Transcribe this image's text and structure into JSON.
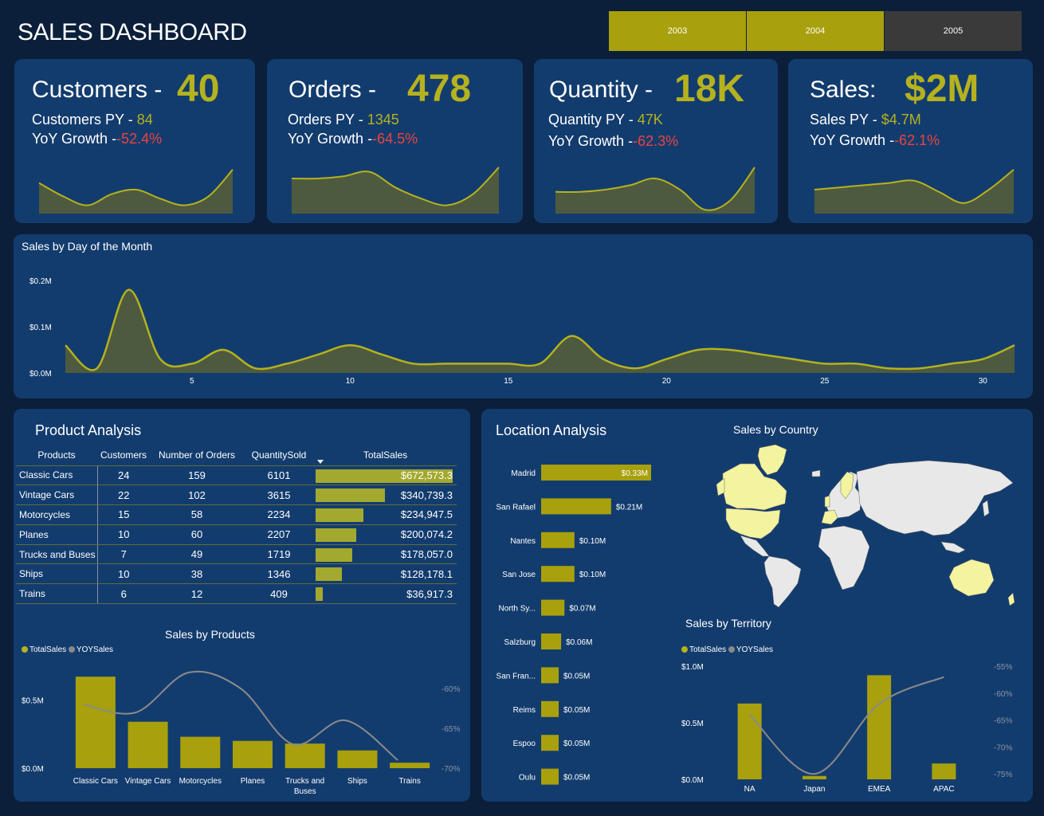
{
  "header": {
    "title": "SALES DASHBOARD"
  },
  "year_filter": {
    "options": [
      "2003",
      "2004",
      "2005"
    ],
    "selected": [
      "2003",
      "2004"
    ],
    "selected_color": "#a8a00c",
    "unselected_color": "#3a3a3a"
  },
  "colors": {
    "accent": "#b5b21e",
    "negative": "#e8443f",
    "panel": "#133c6e",
    "background": "#0b1f3a",
    "area_fill": "#4e5a3f"
  },
  "kpis": [
    {
      "name": "Customers -",
      "value": "40",
      "py_label": "Customers PY -",
      "py_value": "84",
      "yoy_label": "YoY Growth -",
      "yoy_value": "-52.4%",
      "trend": [
        0.65,
        0.35,
        0.15,
        0.4,
        0.5,
        0.3,
        0.15,
        0.35,
        0.95
      ]
    },
    {
      "name": "Orders -",
      "value": "478",
      "py_label": "Orders PY -",
      "py_value": "1345",
      "yoy_label": "YoY Growth -",
      "yoy_value": "-64.5%",
      "trend": [
        0.75,
        0.75,
        0.8,
        0.9,
        0.55,
        0.3,
        0.15,
        0.4,
        1.0
      ]
    },
    {
      "name": "Quantity -",
      "value": "18K",
      "py_label": "Quantity PY -",
      "py_value": "47K",
      "yoy_label": "YoY Growth -",
      "yoy_value": "-62.3%",
      "trend": [
        0.45,
        0.45,
        0.5,
        0.6,
        0.75,
        0.5,
        0.05,
        0.25,
        1.0
      ]
    },
    {
      "name": "Sales:",
      "value": "$2M",
      "py_label": "Sales PY -",
      "py_value": "$4.7M",
      "yoy_label": "YoY Growth -",
      "yoy_value": "-62.1%",
      "trend": [
        0.5,
        0.55,
        0.6,
        0.65,
        0.7,
        0.45,
        0.2,
        0.5,
        0.95
      ]
    }
  ],
  "sales_by_day": {
    "title": "Sales by Day of the Month",
    "y_ticks": [
      "$0.0M",
      "$0.1M",
      "$0.2M"
    ],
    "x_ticks": [
      "5",
      "10",
      "15",
      "20",
      "25",
      "30"
    ]
  },
  "product_analysis": {
    "title": "Product Analysis",
    "columns": [
      "Products",
      "Customers",
      "Number of Orders",
      "QuantitySold",
      "TotalSales"
    ],
    "rows": [
      {
        "product": "Classic Cars",
        "customers": "24",
        "orders": "159",
        "quantity": "6101",
        "sales": "$672,573.3",
        "sales_value": 672573.3
      },
      {
        "product": "Vintage Cars",
        "customers": "22",
        "orders": "102",
        "quantity": "3615",
        "sales": "$340,739.3",
        "sales_value": 340739.3
      },
      {
        "product": "Motorcycles",
        "customers": "15",
        "orders": "58",
        "quantity": "2234",
        "sales": "$234,947.5",
        "sales_value": 234947.5
      },
      {
        "product": "Planes",
        "customers": "10",
        "orders": "60",
        "quantity": "2207",
        "sales": "$200,074.2",
        "sales_value": 200074.2
      },
      {
        "product": "Trucks and Buses",
        "customers": "7",
        "orders": "49",
        "quantity": "1719",
        "sales": "$178,057.0",
        "sales_value": 178057.0
      },
      {
        "product": "Ships",
        "customers": "10",
        "orders": "38",
        "quantity": "1346",
        "sales": "$128,178.1",
        "sales_value": 128178.1
      },
      {
        "product": "Trains",
        "customers": "6",
        "orders": "12",
        "quantity": "409",
        "sales": "$36,917.3",
        "sales_value": 36917.3
      }
    ]
  },
  "sales_by_products": {
    "title": "Sales by Products",
    "legend": [
      "TotalSales",
      "YOYSales"
    ],
    "y_ticks_left": [
      "$0.0M",
      "$0.5M"
    ],
    "y_ticks_right": [
      "-70%",
      "-65%",
      "-60%"
    ]
  },
  "location_analysis": {
    "title": "Location Analysis"
  },
  "sales_by_country": {
    "title": "Sales by Country"
  },
  "sales_by_territory": {
    "title": "Sales by Territory",
    "legend": [
      "TotalSales",
      "YOYSales"
    ],
    "y_ticks_left": [
      "$0.0M",
      "$0.5M",
      "$1.0M"
    ],
    "y_ticks_right": [
      "-75%",
      "-70%",
      "-65%",
      "-60%",
      "-55%"
    ]
  },
  "chart_data": [
    {
      "type": "area",
      "title": "Sales by Day of the Month",
      "x": [
        1,
        2,
        3,
        4,
        5,
        6,
        7,
        8,
        9,
        10,
        11,
        12,
        13,
        14,
        15,
        16,
        17,
        18,
        19,
        20,
        21,
        22,
        23,
        24,
        25,
        26,
        27,
        28,
        29,
        30,
        31
      ],
      "values": [
        0.06,
        0.01,
        0.18,
        0.03,
        0.02,
        0.05,
        0.01,
        0.02,
        0.04,
        0.06,
        0.04,
        0.02,
        0.02,
        0.02,
        0.02,
        0.02,
        0.08,
        0.03,
        0.01,
        0.03,
        0.05,
        0.05,
        0.04,
        0.03,
        0.02,
        0.02,
        0.01,
        0.01,
        0.02,
        0.03,
        0.06
      ],
      "ylim": [
        0,
        0.2
      ],
      "ylabel_unit": "$M"
    },
    {
      "type": "bar",
      "title": "Sales by Products",
      "categories": [
        "Classic Cars",
        "Vintage Cars",
        "Motorcycles",
        "Planes",
        "Trucks and Buses",
        "Ships",
        "Trains"
      ],
      "series": [
        {
          "name": "TotalSales",
          "values": [
            0.67,
            0.34,
            0.23,
            0.2,
            0.18,
            0.13,
            0.04
          ],
          "unit": "$M"
        },
        {
          "name": "YOYSales",
          "values": [
            -62,
            -63,
            -58,
            -60,
            -67,
            -64,
            -69
          ],
          "unit": "%"
        }
      ],
      "ylim": [
        0,
        0.7
      ],
      "y2lim": [
        -70,
        -58
      ]
    },
    {
      "type": "bar",
      "title": "Location Analysis",
      "categories": [
        "Madrid",
        "San Rafael",
        "Nantes",
        "San Jose",
        "North Sy...",
        "Salzburg",
        "San Fran...",
        "Reims",
        "Espoo",
        "Oulu"
      ],
      "values": [
        0.33,
        0.21,
        0.1,
        0.1,
        0.07,
        0.06,
        0.05,
        0.05,
        0.05,
        0.05
      ],
      "value_labels": [
        "$0.33M",
        "$0.21M",
        "$0.10M",
        "$0.10M",
        "$0.07M",
        "$0.06M",
        "$0.05M",
        "$0.05M",
        "$0.05M",
        "$0.05M"
      ],
      "orientation": "horizontal"
    },
    {
      "type": "bar",
      "title": "Sales by Territory",
      "categories": [
        "NA",
        "Japan",
        "EMEA",
        "APAC"
      ],
      "series": [
        {
          "name": "TotalSales",
          "values": [
            0.67,
            0.03,
            0.92,
            0.14
          ],
          "unit": "$M"
        },
        {
          "name": "YOYSales",
          "values": [
            -64,
            -75,
            -62,
            -57
          ],
          "unit": "%"
        }
      ],
      "ylim": [
        0,
        1.0
      ],
      "y2lim": [
        -76,
        -55
      ]
    }
  ]
}
